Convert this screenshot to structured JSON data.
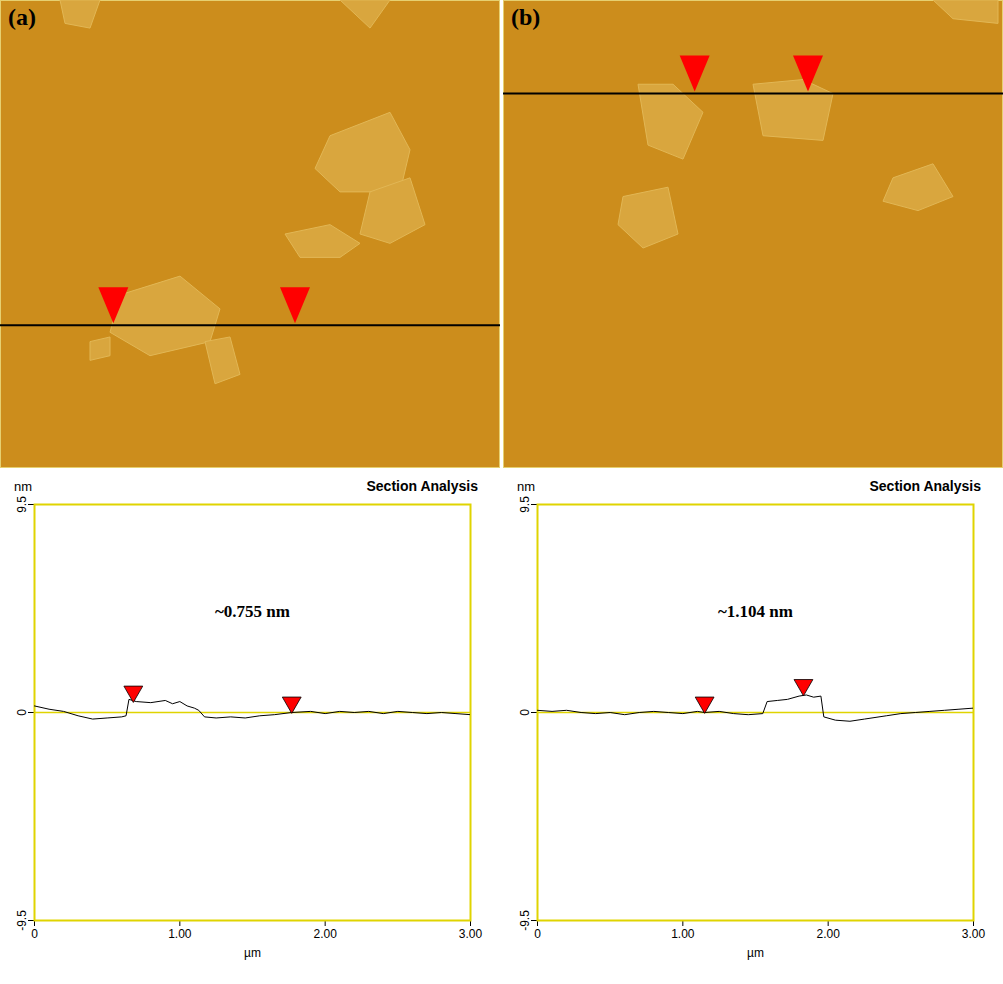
{
  "chart_data": [
    {
      "type": "line",
      "panel": "(a)",
      "title": "Section Analysis",
      "y_label": "nm",
      "x_label": "µm",
      "annotation": "~0.755 nm",
      "color": "#000000",
      "grid": false,
      "x": [
        0,
        0.1,
        0.2,
        0.3,
        0.4,
        0.5,
        0.6,
        0.63,
        0.65,
        0.7,
        0.8,
        0.9,
        0.95,
        1.0,
        1.05,
        1.1,
        1.13,
        1.17,
        1.25,
        1.35,
        1.45,
        1.55,
        1.65,
        1.77,
        1.9,
        2.0,
        2.1,
        2.2,
        2.3,
        2.4,
        2.5,
        2.6,
        2.7,
        2.8,
        2.9,
        3.0
      ],
      "values": [
        0.3,
        0.15,
        0.05,
        -0.15,
        -0.3,
        -0.25,
        -0.2,
        -0.15,
        0.6,
        0.5,
        0.45,
        0.55,
        0.4,
        0.5,
        0.3,
        0.2,
        0.1,
        -0.2,
        -0.25,
        -0.2,
        -0.25,
        -0.15,
        -0.1,
        0,
        0.05,
        -0.05,
        0.05,
        0,
        0.05,
        -0.05,
        0.05,
        0,
        -0.05,
        0,
        -0.05,
        -0.1
      ],
      "markers": {
        "x": [
          0.68,
          1.77
        ],
        "y": [
          0.5,
          0
        ],
        "color": "#ff0000"
      },
      "xlim": [
        0,
        3
      ],
      "ylim": [
        -9.5,
        9.5
      ],
      "xticks": [
        0,
        {
          "value": 1,
          "label": "1.00"
        },
        {
          "value": 2,
          "label": "2.00"
        },
        {
          "value": 3,
          "label": "3.00"
        }
      ],
      "yticks": [
        -9.5,
        0,
        9.5
      ]
    },
    {
      "type": "line",
      "panel": "(b)",
      "title": "Section Analysis",
      "y_label": "nm",
      "x_label": "µm",
      "annotation": "~1.104 nm",
      "color": "#000000",
      "grid": false,
      "x": [
        0,
        0.1,
        0.2,
        0.3,
        0.4,
        0.5,
        0.6,
        0.7,
        0.8,
        0.9,
        1.0,
        1.1,
        1.15,
        1.25,
        1.35,
        1.45,
        1.55,
        1.58,
        1.65,
        1.72,
        1.8,
        1.85,
        1.9,
        1.95,
        1.97,
        2.05,
        2.15,
        2.25,
        2.4,
        2.5,
        2.6,
        2.7,
        2.8,
        2.9,
        3.0
      ],
      "values": [
        0.1,
        0.05,
        0.1,
        0,
        -0.05,
        0,
        -0.1,
        0,
        0.05,
        0,
        -0.05,
        0.05,
        0,
        0.05,
        -0.05,
        -0.1,
        -0.05,
        0.5,
        0.55,
        0.6,
        0.75,
        0.8,
        0.7,
        0.75,
        -0.2,
        -0.35,
        -0.4,
        -0.3,
        -0.15,
        -0.05,
        0,
        0.05,
        0.1,
        0.15,
        0.2
      ],
      "markers": {
        "x": [
          1.15,
          1.83
        ],
        "y": [
          0,
          0.8
        ],
        "color": "#ff0000"
      },
      "xlim": [
        0,
        3
      ],
      "ylim": [
        -9.5,
        9.5
      ],
      "xticks": [
        0,
        {
          "value": 1,
          "label": "1.00"
        },
        {
          "value": 2,
          "label": "2.00"
        },
        {
          "value": 3,
          "label": "3.00"
        }
      ],
      "yticks": [
        -9.5,
        0,
        9.5
      ]
    }
  ]
}
